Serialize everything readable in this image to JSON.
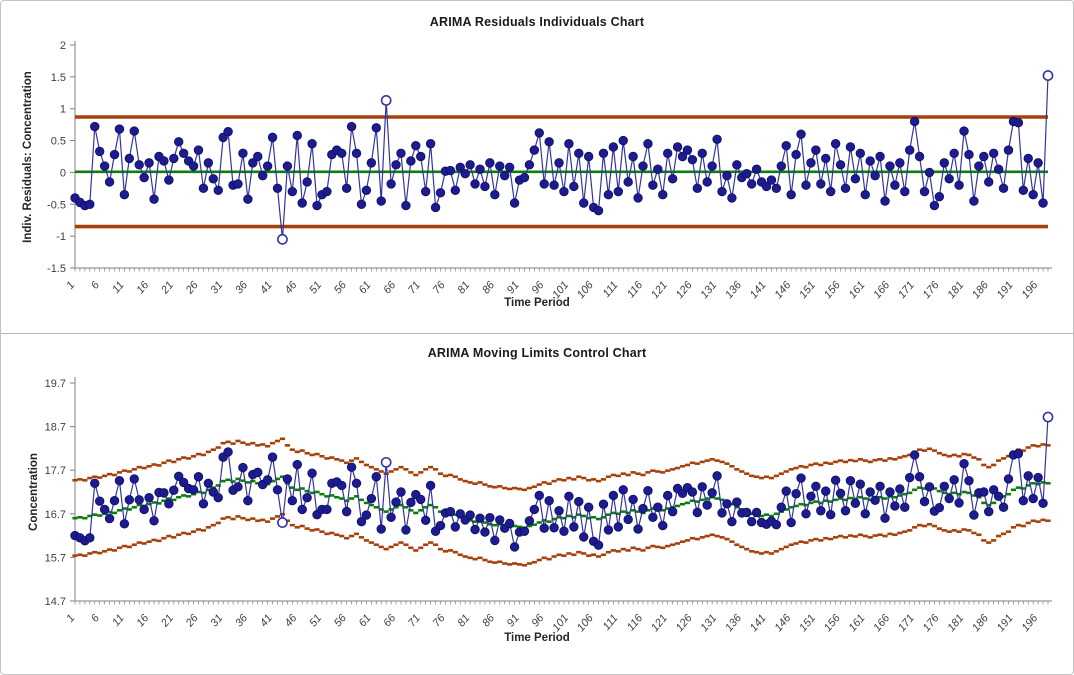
{
  "window": {
    "background": "#ffffff",
    "frame_border": "#c3c3c3",
    "divider": "#b8b8b8"
  },
  "chart_data": [
    {
      "type": "line",
      "title": "ARIMA Residuals Individuals Chart",
      "xlabel": "Time Period",
      "ylabel": "Indiv. Residuals: Concentration",
      "ylim": [
        -1.5,
        2
      ],
      "y_ticks": [
        2,
        1.5,
        1,
        0.5,
        0,
        -0.5,
        -1,
        -1.5
      ],
      "x_ticks": {
        "first": 1,
        "step": 5,
        "last": 196
      },
      "n_points": 198,
      "grid": false,
      "legend": "none",
      "center_line": 0.01,
      "ucl": 0.87,
      "lcl": -0.85,
      "out_of_control_points": [
        43,
        64,
        198
      ],
      "series": [
        {
          "name": "Individual Residuals",
          "values": [
            -0.4,
            -0.47,
            -0.52,
            -0.5,
            0.72,
            0.33,
            0.1,
            -0.15,
            0.28,
            0.68,
            -0.35,
            0.22,
            0.65,
            0.12,
            -0.08,
            0.15,
            -0.42,
            0.25,
            0.18,
            -0.12,
            0.22,
            0.48,
            0.3,
            0.18,
            0.1,
            0.35,
            -0.25,
            0.15,
            -0.1,
            -0.28,
            0.55,
            0.64,
            -0.2,
            -0.18,
            0.3,
            -0.42,
            0.15,
            0.25,
            -0.05,
            0.1,
            0.55,
            -0.25,
            -1.05,
            0.1,
            -0.3,
            0.58,
            -0.48,
            -0.15,
            0.45,
            -0.52,
            -0.35,
            -0.3,
            0.28,
            0.35,
            0.3,
            -0.25,
            0.72,
            0.3,
            -0.5,
            -0.28,
            0.15,
            0.7,
            -0.45,
            1.13,
            -0.18,
            0.12,
            0.3,
            -0.52,
            0.18,
            0.42,
            0.25,
            -0.3,
            0.45,
            -0.55,
            -0.32,
            0.02,
            0.03,
            -0.28,
            0.08,
            -0.02,
            0.12,
            -0.18,
            0.05,
            -0.22,
            0.15,
            -0.35,
            0.1,
            -0.05,
            0.08,
            -0.48,
            -0.12,
            -0.08,
            0.12,
            0.35,
            0.62,
            -0.18,
            0.48,
            -0.2,
            0.15,
            -0.3,
            0.45,
            -0.22,
            0.3,
            -0.48,
            0.25,
            -0.55,
            -0.6,
            0.3,
            -0.35,
            0.4,
            -0.3,
            0.5,
            -0.15,
            0.25,
            -0.4,
            0.1,
            0.45,
            -0.2,
            0.05,
            -0.35,
            0.3,
            -0.1,
            0.4,
            0.25,
            0.35,
            0.2,
            -0.25,
            0.3,
            -0.15,
            0.1,
            0.52,
            -0.3,
            -0.05,
            -0.4,
            0.12,
            -0.08,
            -0.02,
            -0.18,
            0.05,
            -0.15,
            -0.22,
            -0.12,
            -0.25,
            0.1,
            0.42,
            -0.35,
            0.28,
            0.6,
            -0.2,
            0.15,
            0.35,
            -0.18,
            0.22,
            -0.3,
            0.45,
            0.12,
            -0.25,
            0.4,
            -0.1,
            0.3,
            -0.35,
            0.18,
            -0.05,
            0.25,
            -0.45,
            0.1,
            -0.2,
            0.15,
            -0.3,
            0.35,
            0.8,
            0.25,
            -0.3,
            0,
            -0.52,
            -0.38,
            0.15,
            -0.1,
            0.3,
            -0.2,
            0.65,
            0.28,
            -0.45,
            0.1,
            0.25,
            -0.15,
            0.3,
            0.05,
            -0.25,
            0.35,
            0.8,
            0.78,
            -0.28,
            0.22,
            -0.35,
            0.15,
            -0.48,
            1.52
          ]
        }
      ],
      "colors": {
        "point": "#1c1c90",
        "point_edge": "#0f0f60",
        "line": "#3434a2",
        "center": "#0e7d0e",
        "limit": "#a6410b",
        "axis": "#808080",
        "text": "#3f3f3f",
        "open_fill": "#ffffff"
      }
    },
    {
      "type": "line",
      "title": "ARIMA Moving Limits Control Chart",
      "xlabel": "Time Period",
      "ylabel": "Concentration",
      "ylim": [
        14.7,
        19.7
      ],
      "y_ticks": [
        19.7,
        18.7,
        17.7,
        16.7,
        15.7,
        14.7
      ],
      "x_ticks": {
        "first": 1,
        "step": 5,
        "last": 196
      },
      "n_points": 198,
      "grid": false,
      "legend": "none",
      "upper_offset": 0.87,
      "lower_offset": 0.86,
      "out_of_control_points": [
        43,
        64,
        198
      ],
      "values_note": "plotted Concentration = centers[i] + residuals[i] from chart 1; moving UCL/LCL = centers ± offsets",
      "centers": [
        16.6,
        16.62,
        16.6,
        16.65,
        16.68,
        16.66,
        16.7,
        16.74,
        16.72,
        16.78,
        16.82,
        16.8,
        16.85,
        16.9,
        16.88,
        16.92,
        16.96,
        16.94,
        17,
        17.05,
        17.02,
        17.08,
        17.12,
        17.1,
        17.15,
        17.2,
        17.18,
        17.25,
        17.3,
        17.35,
        17.45,
        17.48,
        17.44,
        17.5,
        17.46,
        17.42,
        17.45,
        17.4,
        17.42,
        17.38,
        17.45,
        17.5,
        17.55,
        17.4,
        17.3,
        17.25,
        17.28,
        17.22,
        17.18,
        17.2,
        17.15,
        17.1,
        17.12,
        17.08,
        17.05,
        17,
        17.05,
        17.1,
        17.02,
        16.95,
        16.9,
        16.85,
        16.8,
        16.75,
        16.8,
        16.85,
        16.9,
        16.85,
        16.78,
        16.72,
        16.78,
        16.85,
        16.9,
        16.85,
        16.75,
        16.7,
        16.72,
        16.68,
        16.62,
        16.58,
        16.55,
        16.52,
        16.55,
        16.5,
        16.46,
        16.44,
        16.46,
        16.42,
        16.4,
        16.42,
        16.4,
        16.38,
        16.42,
        16.45,
        16.5,
        16.55,
        16.52,
        16.58,
        16.62,
        16.6,
        16.65,
        16.62,
        16.68,
        16.65,
        16.6,
        16.62,
        16.58,
        16.62,
        16.68,
        16.72,
        16.7,
        16.75,
        16.72,
        16.78,
        16.75,
        16.72,
        16.78,
        16.82,
        16.8,
        16.78,
        16.82,
        16.85,
        16.88,
        16.92,
        16.95,
        17,
        16.98,
        17.02,
        17.05,
        17.08,
        17.05,
        17.02,
        16.98,
        16.92,
        16.85,
        16.8,
        16.75,
        16.7,
        16.68,
        16.65,
        16.68,
        16.65,
        16.7,
        16.75,
        16.8,
        16.85,
        16.88,
        16.92,
        16.9,
        16.95,
        16.98,
        16.95,
        17,
        16.98,
        17.02,
        17.05,
        17.02,
        17.06,
        17.04,
        17.08,
        17.05,
        17.02,
        17.06,
        17.08,
        17.05,
        17.1,
        17.08,
        17.12,
        17.15,
        17.18,
        17.25,
        17.3,
        17.28,
        17.32,
        17.28,
        17.22,
        17.18,
        17.15,
        17.18,
        17.15,
        17.2,
        17.18,
        17.12,
        17.08,
        16.95,
        16.9,
        16.95,
        17.05,
        17.1,
        17.15,
        17.25,
        17.3,
        17.28,
        17.35,
        17.4,
        17.38,
        17.42,
        17.4
      ],
      "colors": {
        "point": "#1c1c90",
        "point_edge": "#0f0f60",
        "line": "#3434a2",
        "center": "#0e7d0e",
        "limit": "#a6410b",
        "axis": "#808080",
        "text": "#3f3f3f",
        "open_fill": "#ffffff"
      }
    }
  ]
}
